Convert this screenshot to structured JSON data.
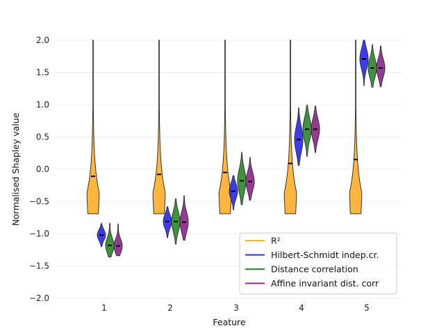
{
  "colors": {
    "r2": "#FFB02E",
    "hsic": "#2B2BE8",
    "dcor": "#2E8B2E",
    "aidc": "#8B2B8B",
    "grid": "#ececec",
    "outline": "#333333"
  },
  "chart_data": {
    "type": "violin",
    "title": "",
    "xlabel": "Feature",
    "ylabel": "Normalised Shapley value",
    "ylim": [
      -2.0,
      2.0
    ],
    "yticks": [
      "−2.0",
      "−1.5",
      "−1.0",
      "−0.5",
      "0.0",
      "0.5",
      "1.0",
      "1.5",
      "2.0"
    ],
    "ytick_values": [
      -2.0,
      -1.5,
      -1.0,
      -0.5,
      0.0,
      0.5,
      1.0,
      1.5,
      2.0
    ],
    "categories": [
      "1",
      "2",
      "3",
      "4",
      "5"
    ],
    "grid": true,
    "legend": {
      "placement": "lower-right",
      "entries": [
        {
          "label": "R²",
          "color_key": "r2"
        },
        {
          "label": "Hilbert-Schmidt indep.cr.",
          "color_key": "hsic"
        },
        {
          "label": "Distance correlation",
          "color_key": "dcor"
        },
        {
          "label": "Affine invariant dist. corr",
          "color_key": "aidc"
        }
      ]
    },
    "series": [
      {
        "name": "R²",
        "color_key": "r2",
        "median": [
          -0.11,
          -0.08,
          -0.05,
          0.09,
          0.15
        ],
        "min": [
          -0.69,
          -0.69,
          -0.69,
          -0.69,
          -0.69
        ],
        "max": [
          2.0,
          2.0,
          2.0,
          2.0,
          2.0
        ]
      },
      {
        "name": "Hilbert-Schmidt indep.cr.",
        "color_key": "hsic",
        "median": [
          -1.02,
          -0.81,
          -0.34,
          0.46,
          1.71
        ],
        "min": [
          -1.2,
          -1.06,
          -0.63,
          0.06,
          1.3
        ],
        "max": [
          -0.84,
          -0.58,
          -0.1,
          0.95,
          2.0
        ]
      },
      {
        "name": "Distance correlation",
        "color_key": "dcor",
        "median": [
          -1.18,
          -0.81,
          -0.18,
          0.62,
          1.57
        ],
        "min": [
          -1.36,
          -1.16,
          -0.55,
          0.2,
          1.27
        ],
        "max": [
          -0.84,
          -0.46,
          0.26,
          0.99,
          1.93
        ]
      },
      {
        "name": "Affine invariant dist. corr",
        "color_key": "aidc",
        "median": [
          -1.19,
          -0.82,
          -0.19,
          0.62,
          1.57
        ],
        "min": [
          -1.34,
          -1.1,
          -0.48,
          0.26,
          1.28
        ],
        "max": [
          -0.85,
          -0.41,
          0.18,
          0.98,
          1.91
        ]
      }
    ]
  }
}
